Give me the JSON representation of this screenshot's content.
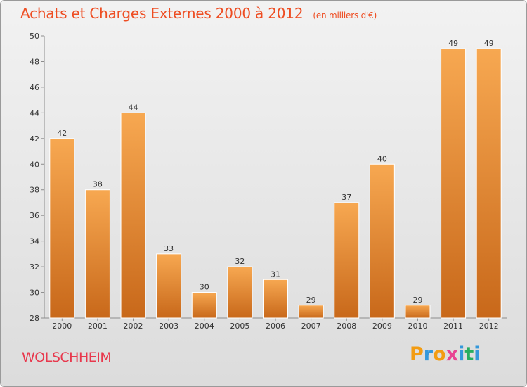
{
  "title": "Achats et Charges Externes 2000 à 2012",
  "subtitle": "(en milliers d'€)",
  "town": "WOLSCHHEIM",
  "logo": {
    "letters": [
      "P",
      "r",
      "o",
      "x",
      "i",
      "t",
      "i"
    ],
    "colors": [
      "#f39c12",
      "#3498db",
      "#f39c12",
      "#e84393",
      "#3498db",
      "#27ae60",
      "#3498db"
    ]
  },
  "colors": {
    "bar_light": "#f7a851",
    "bar_dark": "#c8681a",
    "title": "#ee4d22",
    "town": "#e8384d"
  },
  "chart_data": {
    "type": "bar",
    "title": "Achats et Charges Externes 2000 à 2012",
    "subtitle": "(en milliers d'€)",
    "categories": [
      "2000",
      "2001",
      "2002",
      "2003",
      "2004",
      "2005",
      "2006",
      "2007",
      "2008",
      "2009",
      "2010",
      "2011",
      "2012"
    ],
    "values": [
      42,
      38,
      44,
      33,
      30,
      32,
      31,
      29,
      37,
      40,
      29,
      49,
      49
    ],
    "ylim": [
      28,
      50
    ],
    "yticks": [
      28,
      30,
      32,
      34,
      36,
      38,
      40,
      42,
      44,
      46,
      48,
      50
    ],
    "grid": false,
    "xlabel": "",
    "ylabel": ""
  }
}
